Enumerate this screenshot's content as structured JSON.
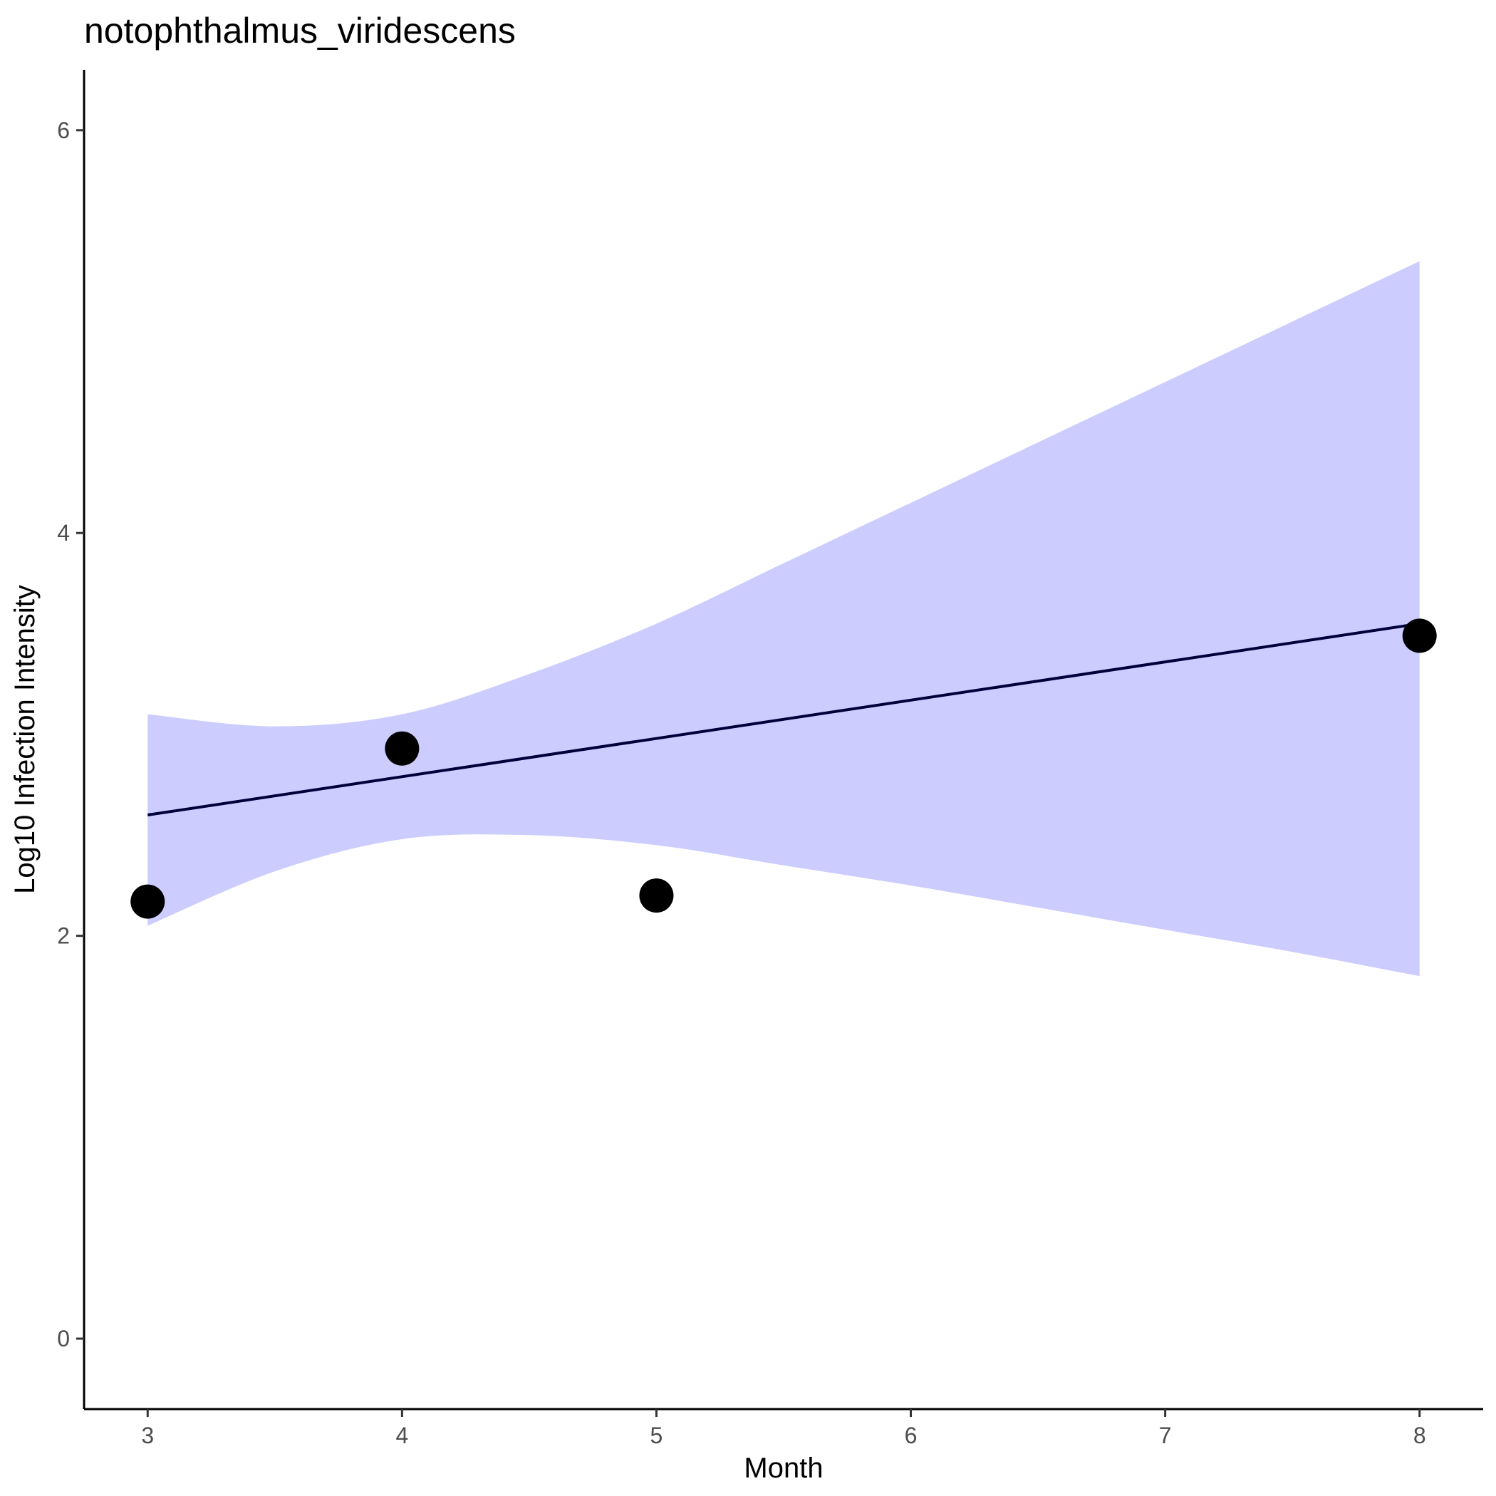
{
  "chart_data": {
    "type": "scatter",
    "title": "notophthalmus_viridescens",
    "xlabel": "Month",
    "ylabel": "Log10 Infection Intensity",
    "xlim": [
      2.75,
      8.25
    ],
    "ylim": [
      -0.35,
      6.3
    ],
    "x_ticks": [
      3,
      4,
      5,
      6,
      7,
      8
    ],
    "y_ticks": [
      0,
      2,
      4,
      6
    ],
    "points": [
      {
        "x": 3,
        "y": 2.17
      },
      {
        "x": 4,
        "y": 2.93
      },
      {
        "x": 5,
        "y": 2.2
      },
      {
        "x": 8,
        "y": 3.49
      }
    ],
    "fit_line": {
      "x": [
        3,
        8
      ],
      "y": [
        2.6,
        3.55
      ]
    },
    "confidence_band": {
      "x": [
        3,
        3.5,
        4,
        4.5,
        5,
        5.5,
        6,
        6.5,
        7,
        7.5,
        8
      ],
      "upper": [
        3.1,
        3.04,
        3.1,
        3.3,
        3.55,
        3.85,
        4.15,
        4.45,
        4.75,
        5.05,
        5.35
      ],
      "lower": [
        2.05,
        2.32,
        2.48,
        2.5,
        2.45,
        2.35,
        2.25,
        2.14,
        2.03,
        1.92,
        1.8
      ]
    },
    "grid": false,
    "legend": "none",
    "colors": {
      "points": "#000000",
      "fit_line": "#00003a",
      "band": "#ccccff"
    }
  }
}
